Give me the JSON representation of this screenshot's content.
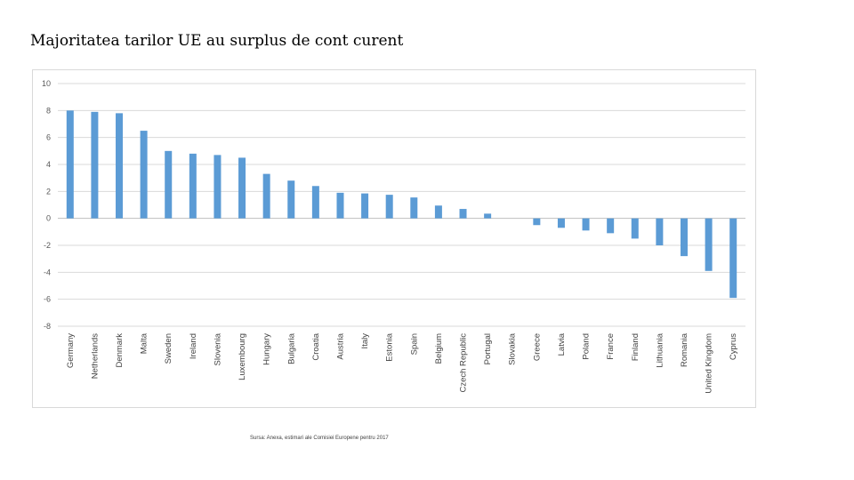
{
  "slide": {
    "title": "Majoritatea tarilor UE au surplus de cont curent",
    "source": "Sursa: Anexa, estimari ale Comisiei Europene pentru 2017"
  },
  "chart_data": {
    "type": "bar",
    "title": "",
    "xlabel": "",
    "ylabel": "",
    "ylim": [
      -8,
      10
    ],
    "yticks": [
      10,
      8,
      6,
      4,
      2,
      0,
      -2,
      -4,
      -6,
      -8
    ],
    "grid": true,
    "legend": "none",
    "bar_color": "#5b9bd5",
    "categories": [
      "Germany",
      "Netherlands",
      "Denmark",
      "Malta",
      "Sweden",
      "Ireland",
      "Slovenia",
      "Luxembourg",
      "Hungary",
      "Bulgaria",
      "Croatia",
      "Austria",
      "Italy",
      "Estonia",
      "Spain",
      "Belgium",
      "Czech Republic",
      "Portugal",
      "Slovakia",
      "Greece",
      "Latvia",
      "Poland",
      "France",
      "Finland",
      "Lithuania",
      "Romania",
      "United Kingdom",
      "Cyprus"
    ],
    "values": [
      8.0,
      7.9,
      7.8,
      6.5,
      5.0,
      4.8,
      4.7,
      4.5,
      3.3,
      2.8,
      2.4,
      1.9,
      1.85,
      1.75,
      1.55,
      0.95,
      0.7,
      0.35,
      0.0,
      -0.5,
      -0.7,
      -0.9,
      -1.1,
      -1.5,
      -2.0,
      -2.8,
      -3.9,
      -5.9
    ]
  }
}
